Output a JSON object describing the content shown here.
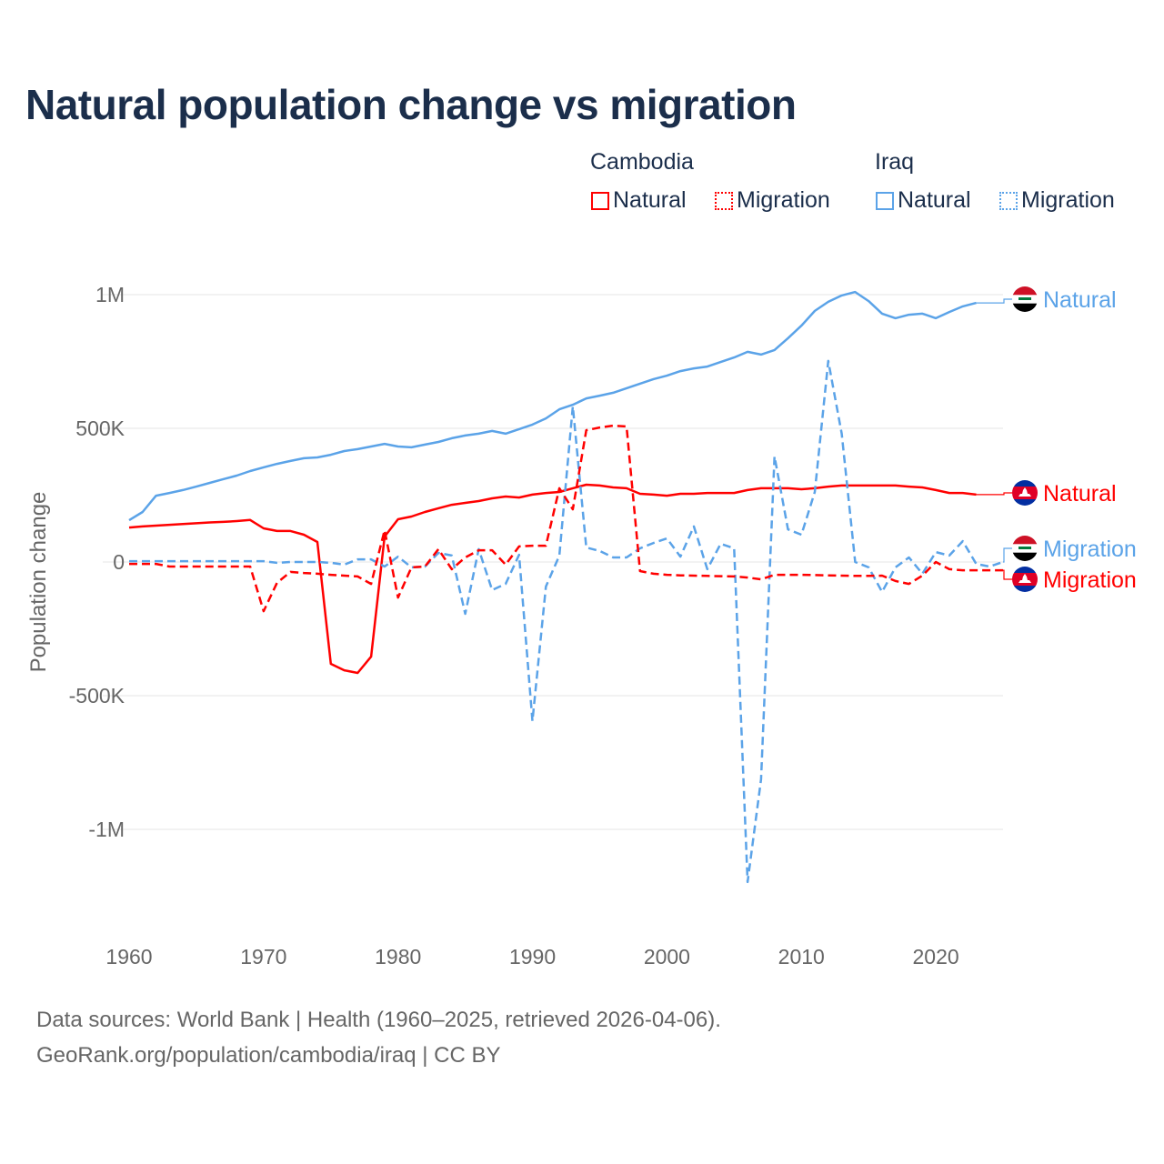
{
  "chart_data": {
    "type": "line",
    "title": "Natural population change vs migration",
    "xlabel": "",
    "ylabel": "Population change",
    "xlim": [
      1960,
      2025
    ],
    "ylim": [
      -1300000,
      1100000
    ],
    "x_ticks": [
      1960,
      1970,
      1980,
      1990,
      2000,
      2010,
      2020
    ],
    "x_tick_labels": [
      "1960",
      "1970",
      "1980",
      "1990",
      "2000",
      "2010",
      "2020"
    ],
    "y_ticks": [
      1000000,
      500000,
      0,
      -500000,
      -1000000
    ],
    "y_tick_labels": [
      "1M",
      "500K",
      "0",
      "-500K",
      "-1M"
    ],
    "grid": true,
    "legend_placement": "top-right",
    "legend_groups": [
      "Cambodia",
      "Iraq"
    ],
    "series": [
      {
        "name": "Natural",
        "country": "Iraq",
        "color": "#5ba3e8",
        "dash": "solid",
        "start_year": 1960,
        "values": [
          156000,
          187000,
          248000,
          258000,
          269000,
          282000,
          296000,
          310000,
          323000,
          340000,
          354000,
          367000,
          378000,
          388000,
          391000,
          401000,
          415000,
          422000,
          432000,
          442000,
          432000,
          429000,
          439000,
          449000,
          463000,
          473000,
          480000,
          490000,
          480000,
          497000,
          514000,
          537000,
          571000,
          588000,
          612000,
          622000,
          633000,
          650000,
          667000,
          684000,
          697000,
          714000,
          724000,
          731000,
          748000,
          765000,
          786000,
          776000,
          793000,
          837000,
          884000,
          939000,
          973000,
          997000,
          1010000,
          976000,
          929000,
          912000,
          925000,
          929000,
          912000,
          935000,
          956000,
          969000
        ]
      },
      {
        "name": "Natural",
        "country": "Cambodia",
        "color": "#ff0000",
        "dash": "solid",
        "start_year": 1960,
        "values": [
          129000,
          133000,
          136000,
          139000,
          142000,
          145000,
          148000,
          150000,
          153000,
          157000,
          126000,
          116000,
          116000,
          102000,
          75000,
          -381000,
          -405000,
          -415000,
          -354000,
          95000,
          160000,
          170000,
          187000,
          201000,
          214000,
          221000,
          228000,
          238000,
          245000,
          241000,
          252000,
          258000,
          262000,
          276000,
          289000,
          286000,
          279000,
          276000,
          255000,
          252000,
          248000,
          255000,
          255000,
          258000,
          258000,
          258000,
          269000,
          276000,
          276000,
          276000,
          272000,
          276000,
          282000,
          286000,
          286000,
          286000,
          286000,
          286000,
          282000,
          279000,
          269000,
          258000,
          258000,
          252000
        ]
      },
      {
        "name": "Migration",
        "country": "Iraq",
        "color": "#5ba3e8",
        "dash": "dashed",
        "start_year": 1960,
        "values": [
          3000,
          3000,
          3000,
          3000,
          3000,
          3000,
          3000,
          3000,
          3000,
          3000,
          3000,
          -3000,
          0,
          0,
          0,
          -3000,
          -10000,
          10000,
          10000,
          -17000,
          20000,
          -20000,
          -17000,
          34000,
          24000,
          -194000,
          48000,
          -105000,
          -82000,
          27000,
          -595000,
          -92000,
          24000,
          582000,
          54000,
          41000,
          17000,
          17000,
          51000,
          71000,
          88000,
          20000,
          133000,
          -27000,
          68000,
          51000,
          -1197000,
          -813000,
          395000,
          122000,
          102000,
          262000,
          752000,
          480000,
          0,
          -20000,
          -112000,
          -20000,
          17000,
          -44000,
          37000,
          24000,
          78000,
          -7000,
          -17000,
          0
        ]
      },
      {
        "name": "Migration",
        "country": "Cambodia",
        "color": "#ff0000",
        "dash": "dashed",
        "start_year": 1960,
        "values": [
          -7000,
          -7000,
          -7000,
          -17000,
          -17000,
          -17000,
          -17000,
          -17000,
          -17000,
          -17000,
          -184000,
          -78000,
          -37000,
          -41000,
          -44000,
          -48000,
          -51000,
          -54000,
          -82000,
          119000,
          -133000,
          -20000,
          -17000,
          48000,
          -27000,
          17000,
          44000,
          44000,
          -10000,
          58000,
          61000,
          61000,
          276000,
          197000,
          493000,
          503000,
          510000,
          507000,
          -34000,
          -44000,
          -48000,
          -50000,
          -51000,
          -52000,
          -53000,
          -54000,
          -58000,
          -65000,
          -48000,
          -48000,
          -48000,
          -49000,
          -50000,
          -51000,
          -52000,
          -52000,
          -51000,
          -71000,
          -82000,
          -51000,
          0,
          -27000,
          -31000,
          -31000,
          -31000,
          -31000
        ]
      }
    ],
    "end_labels": [
      "Natural",
      "Natural",
      "Migration",
      "Migration"
    ]
  },
  "legend": {
    "cambodia_label": "Cambodia",
    "iraq_label": "Iraq",
    "natural": "Natural",
    "migration": "Migration"
  },
  "colors": {
    "cambodia": "#ff0000",
    "iraq": "#5ba3e8",
    "title": "#1b2e4b"
  },
  "footer": {
    "line1": "Data sources: World Bank | Health (1960–2025, retrieved 2026-04-06).",
    "line2": "GeoRank.org/population/cambodia/iraq | CC BY"
  }
}
